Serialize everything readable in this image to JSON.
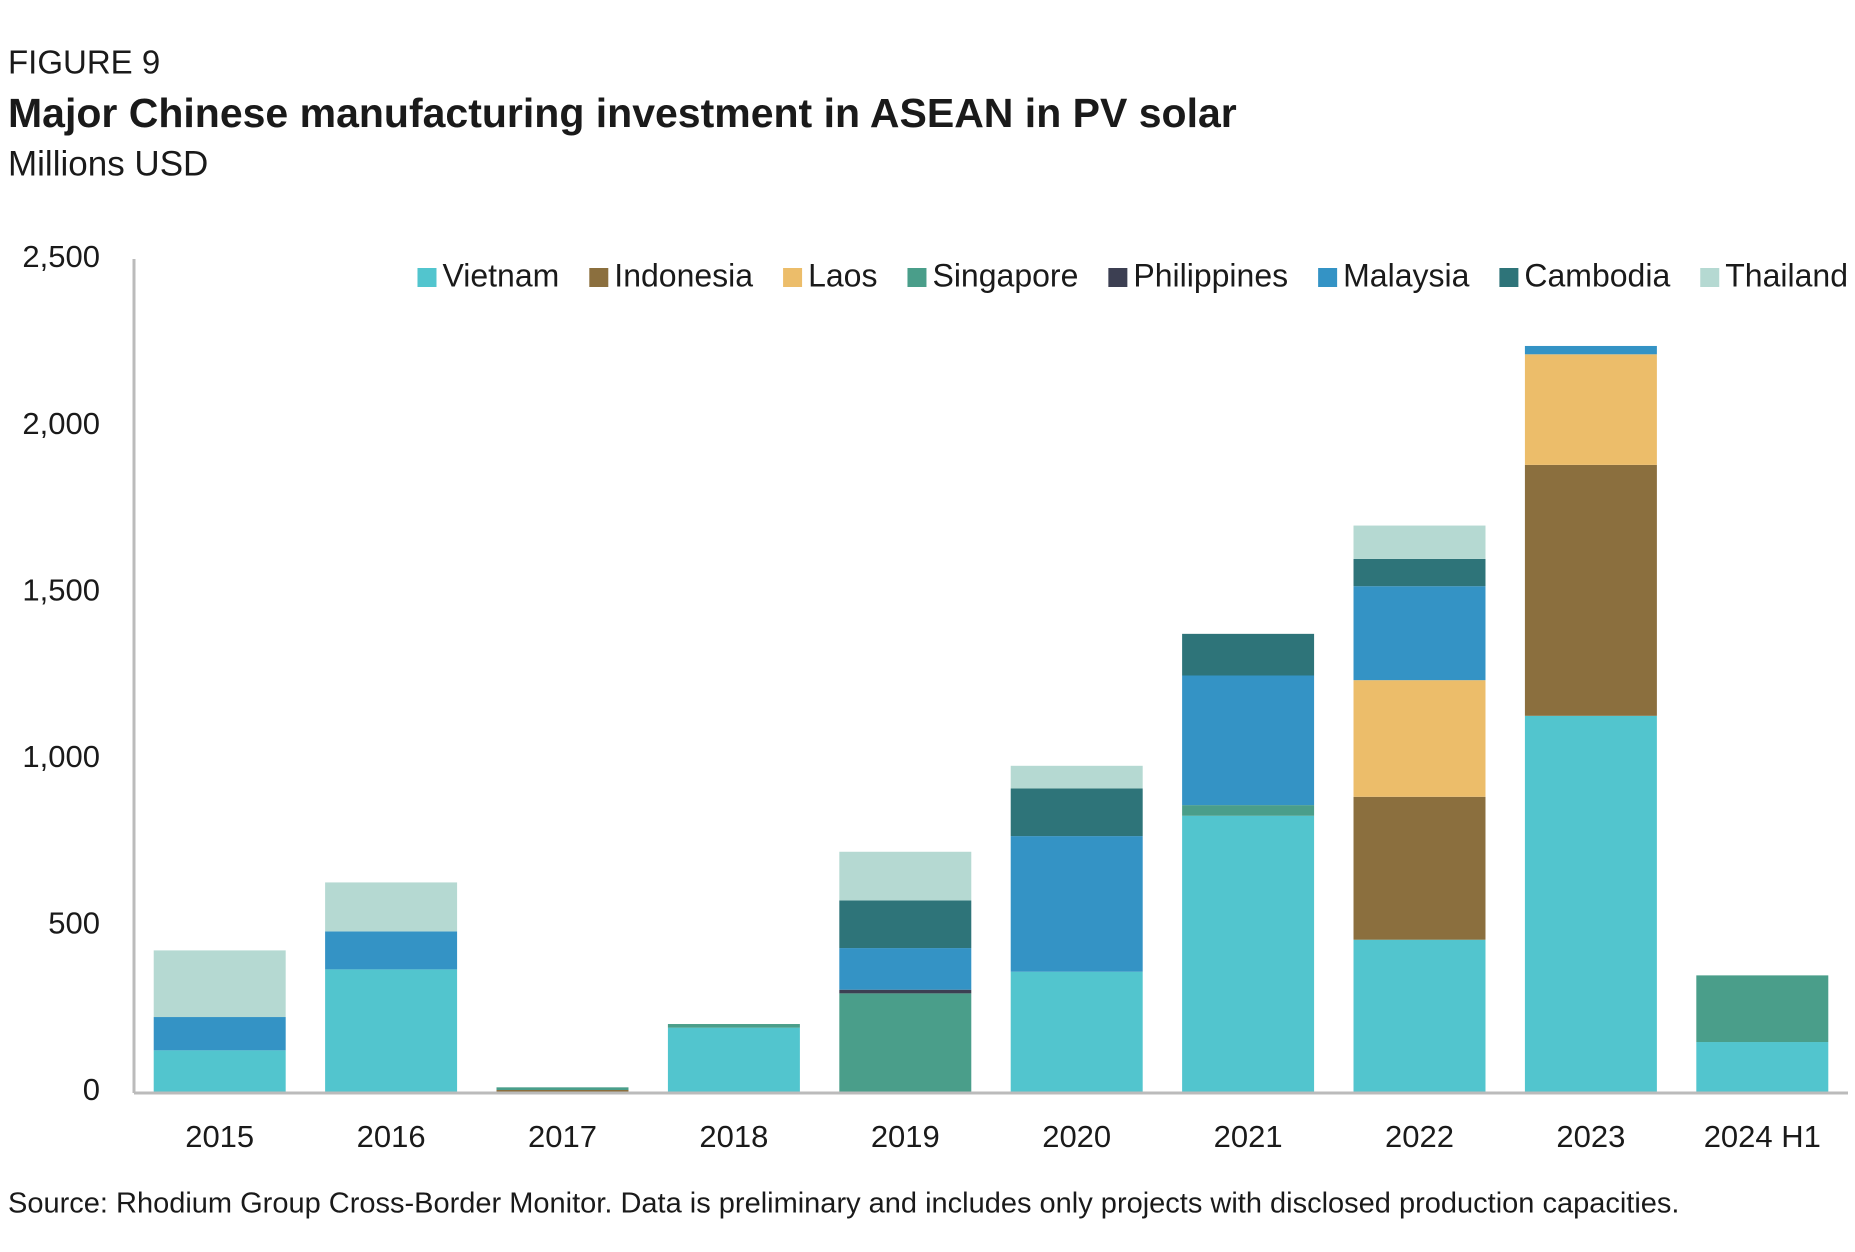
{
  "chart_data": {
    "type": "stacked-bar",
    "figure_label": "FIGURE 9",
    "title": "Major Chinese manufacturing investment in ASEAN in PV solar",
    "subtitle": "Millions USD",
    "source": "Source: Rhodium Group Cross-Border Monitor. Data is preliminary and includes only projects with disclosed production capacities.",
    "categories": [
      "2015",
      "2016",
      "2017",
      "2018",
      "2019",
      "2020",
      "2021",
      "2022",
      "2023",
      "2024 H1"
    ],
    "series": [
      {
        "name": "Vietnam",
        "color": "#52c5ce",
        "values": [
          125,
          368,
          0,
          193,
          0,
          361,
          829,
          457,
          1129,
          150
        ]
      },
      {
        "name": "Indonesia",
        "color": "#8b6f3e",
        "values": [
          0,
          0,
          6,
          0,
          0,
          0,
          0,
          429,
          753,
          0
        ]
      },
      {
        "name": "Laos",
        "color": "#ecbd6a",
        "values": [
          0,
          0,
          0,
          0,
          0,
          0,
          0,
          350,
          332,
          0
        ]
      },
      {
        "name": "Singapore",
        "color": "#4a9e8a",
        "values": [
          0,
          0,
          8,
          11,
          296,
          0,
          32,
          0,
          0,
          200
        ]
      },
      {
        "name": "Philippines",
        "color": "#3c3f52",
        "values": [
          0,
          0,
          0,
          0,
          11,
          0,
          0,
          0,
          0,
          0
        ]
      },
      {
        "name": "Malaysia",
        "color": "#3493c5",
        "values": [
          100,
          114,
          0,
          0,
          125,
          407,
          389,
          282,
          25,
          0
        ]
      },
      {
        "name": "Cambodia",
        "color": "#2e7479",
        "values": [
          0,
          0,
          0,
          0,
          143,
          143,
          125,
          82,
          0,
          0
        ]
      },
      {
        "name": "Thailand",
        "color": "#b5d9d2",
        "values": [
          200,
          147,
          0,
          0,
          146,
          68,
          0,
          100,
          0,
          0
        ]
      }
    ],
    "ylim": [
      0,
      2500
    ],
    "yticks": [
      0,
      500,
      {
        "value": 1000,
        "label": "1,000"
      },
      {
        "value": 1500,
        "label": "1,500"
      },
      {
        "value": 2000,
        "label": "2,000"
      },
      {
        "value": 2500,
        "label": "2,500"
      }
    ],
    "grid": false,
    "legend": "top"
  }
}
